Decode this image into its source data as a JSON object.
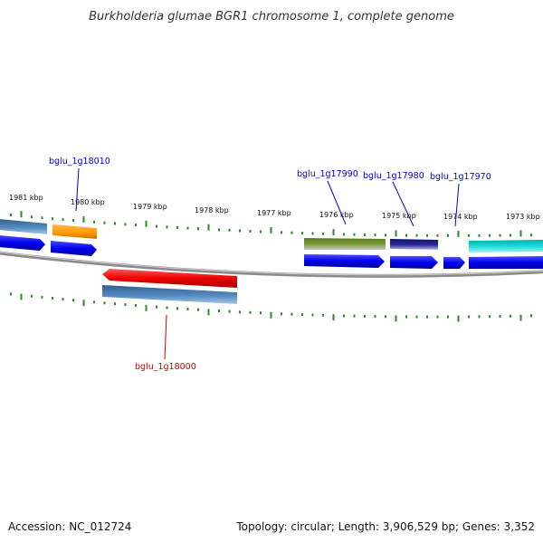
{
  "title": "Burkholderia glumae BGR1 chromosome 1, complete genome",
  "footer": {
    "accession": "Accession: NC_012724",
    "summary": "Topology: circular; Length: 3,906,529 bp; Genes: 3,352"
  },
  "kbp_labels": [
    "1981 kbp",
    "1980 kbp",
    "1979 kbp",
    "1978 kbp",
    "1977 kbp",
    "1976 kbp",
    "1975 kbp",
    "1974 kbp",
    "1973 kbp"
  ],
  "gene_labels": {
    "g18010": "bglu_1g18010",
    "g17990": "bglu_1g17990",
    "g17980": "bglu_1g17980",
    "g17970": "bglu_1g17970",
    "g18000": "bglu_1g18000"
  },
  "colors": {
    "label_blue": "#0000cc",
    "label_red": "#cc0000",
    "tick_green": "#2a8a2a",
    "backbone": "#808080",
    "cds_blue": "#0000ee",
    "steelblue": "#4a7fb5",
    "orange": "#ff9900",
    "red": "#ee0000",
    "olive": "#6b8e23",
    "navy": "#1a1a80",
    "cyan": "#00c8c8"
  }
}
